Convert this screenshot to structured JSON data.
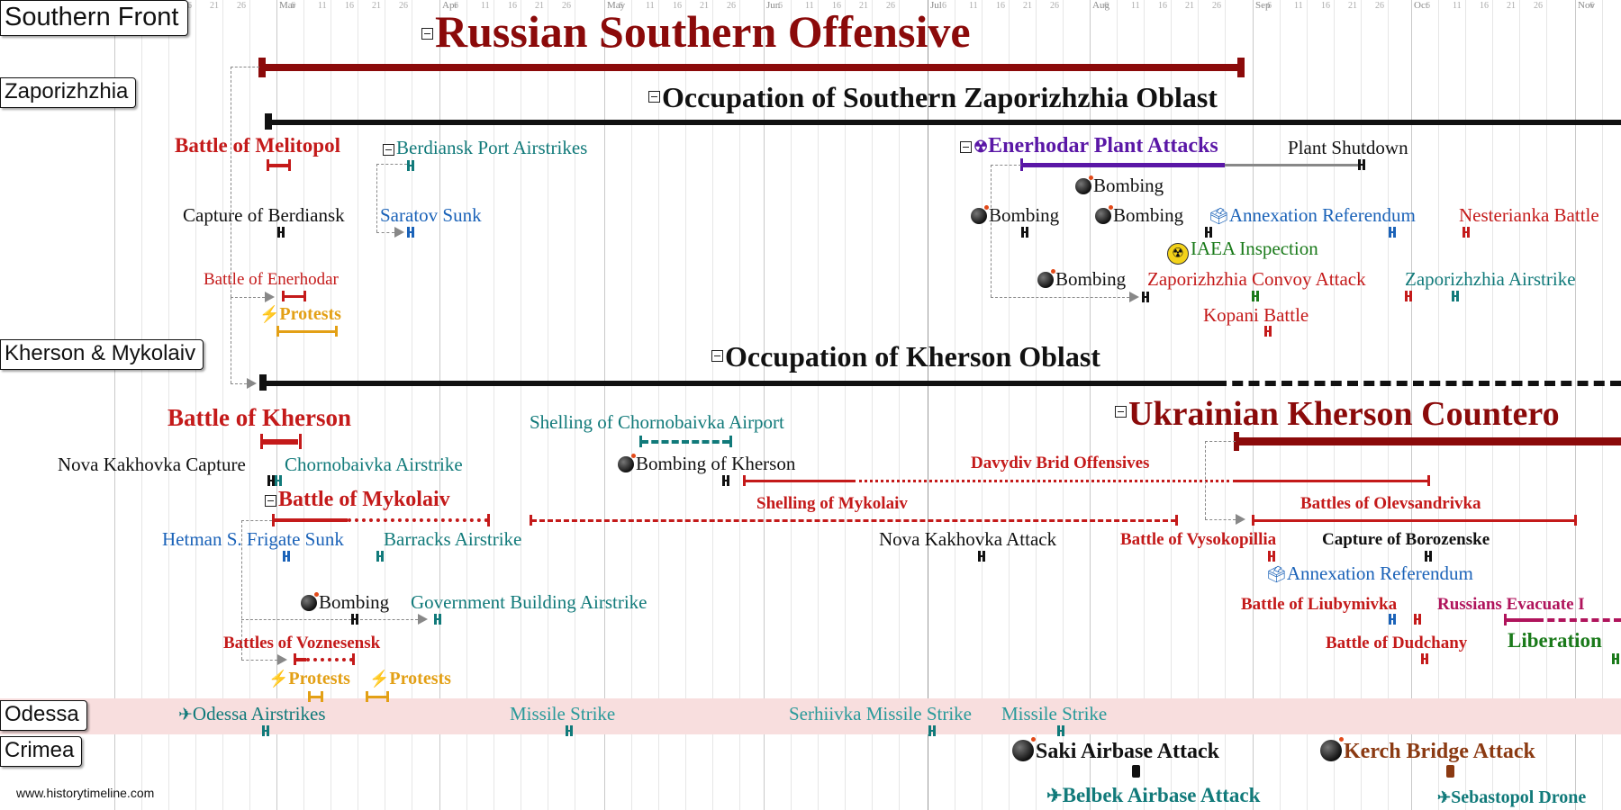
{
  "axis": {
    "months": [
      {
        "label": "Mar",
        "x": 307
      },
      {
        "label": "Apr",
        "x": 488
      },
      {
        "label": "May",
        "x": 671
      },
      {
        "label": "Jun",
        "x": 848
      },
      {
        "label": "Jul",
        "x": 1030
      },
      {
        "label": "Aug",
        "x": 1210
      },
      {
        "label": "Sep",
        "x": 1391
      },
      {
        "label": "Oct",
        "x": 1567
      },
      {
        "label": "Nov",
        "x": 1749
      }
    ],
    "days": [
      "6",
      "11",
      "16",
      "21",
      "26"
    ]
  },
  "regions": {
    "southern_front": "Southern Front",
    "zaporizhzhia": "Zaporizhzhia",
    "kherson_mykolaiv": "Kherson & Mykolaiv",
    "odessa": "Odessa",
    "crimea": "Crimea"
  },
  "events": {
    "russian_southern_offensive": "Russian Southern Offensive",
    "occupation_zaporizhzhia": "Occupation of Southern Zaporizhzhia Oblast",
    "battle_melitopol": "Battle of Melitopol",
    "berdiansk_port_airstrikes": "Berdiansk Port Airstrikes",
    "enerhodar_plant_attacks": "Enerhodar Plant Attacks",
    "plant_shutdown": "Plant Shutdown",
    "bombing_1": "Bombing",
    "capture_berdiansk": "Capture of Berdiansk",
    "saratov_sunk": "Saratov Sunk",
    "bombing_2": "Bombing",
    "bombing_3": "Bombing",
    "annexation_referendum_z": "Annexation Referendum",
    "nesterianka_battle": "Nesterianka Battle",
    "iaea_inspection": "IAEA Inspection",
    "battle_enerhodar": "Battle of Enerhodar",
    "bombing_4": "Bombing",
    "zaporizhzhia_convoy_attack": "Zaporizhzhia Convoy Attack",
    "zaporizhzhia_airstrike": "Zaporizhzhia Airstrike",
    "protests_1": "Protests",
    "kopani_battle": "Kopani Battle",
    "occupation_kherson": "Occupation of Kherson Oblast",
    "battle_kherson": "Battle of Kherson",
    "shelling_chornobaivka": "Shelling of Chornobaivka Airport",
    "ukrainian_kherson_counteroffensive": "Ukrainian Kherson Countero",
    "nova_kakhovka_capture": "Nova Kakhovka Capture",
    "chornobaivka_airstrike": "Chornobaivka Airstrike",
    "bombing_kherson": "Bombing of Kherson",
    "davydiv_brid_offensives": "Davydiv Brid Offensives",
    "battle_mykolaiv": "Battle of Mykolaiv",
    "shelling_mykolaiv": "Shelling of Mykolaiv",
    "battles_olevsandrivka": "Battles of Olevsandrivka",
    "hetman_frigate_sunk": "Hetman S. Frigate Sunk",
    "barracks_airstrike": "Barracks Airstrike",
    "nova_kakhovka_attack": "Nova Kakhovka Attack",
    "battle_vysokopillia": "Battle of Vysokopillia",
    "capture_borozenske": "Capture of Borozenske",
    "annexation_referendum_k": "Annexation Referendum",
    "bombing_5": "Bombing",
    "government_building_airstrike": "Government Building Airstrike",
    "battle_liubymivka": "Battle of Liubymivka",
    "russians_evacuate": "Russians Evacuate I",
    "battles_voznesensk": "Battles of Voznesensk",
    "battle_dudchany": "Battle of Dudchany",
    "liberation": "Liberation",
    "protests_2": "Protests",
    "protests_3": "Protests",
    "odessa_airstrikes": "Odessa Airstrikes",
    "missile_strike_1": "Missile Strike",
    "serhiivka_missile_strike": "Serhiivka Missile Strike",
    "missile_strike_2": "Missile Strike",
    "saki_airbase_attack": "Saki Airbase Attack",
    "kerch_bridge_attack": "Kerch Bridge Attack",
    "belbek_airbase_attack": "Belbek Airbase Attack",
    "sebastopol_drone": "Sebastopol Drone"
  },
  "watermark": "www.historytimeline.com",
  "colors": {
    "dark_red": "#8b0a0a",
    "red": "#c41a1a",
    "teal": "#117a7a",
    "blue": "#1a62b8",
    "purple": "#5a17a6",
    "orange": "#e3a016",
    "green": "#1a7a1a",
    "magenta": "#b0145c",
    "brown": "#8b3a12",
    "black": "#111111"
  }
}
